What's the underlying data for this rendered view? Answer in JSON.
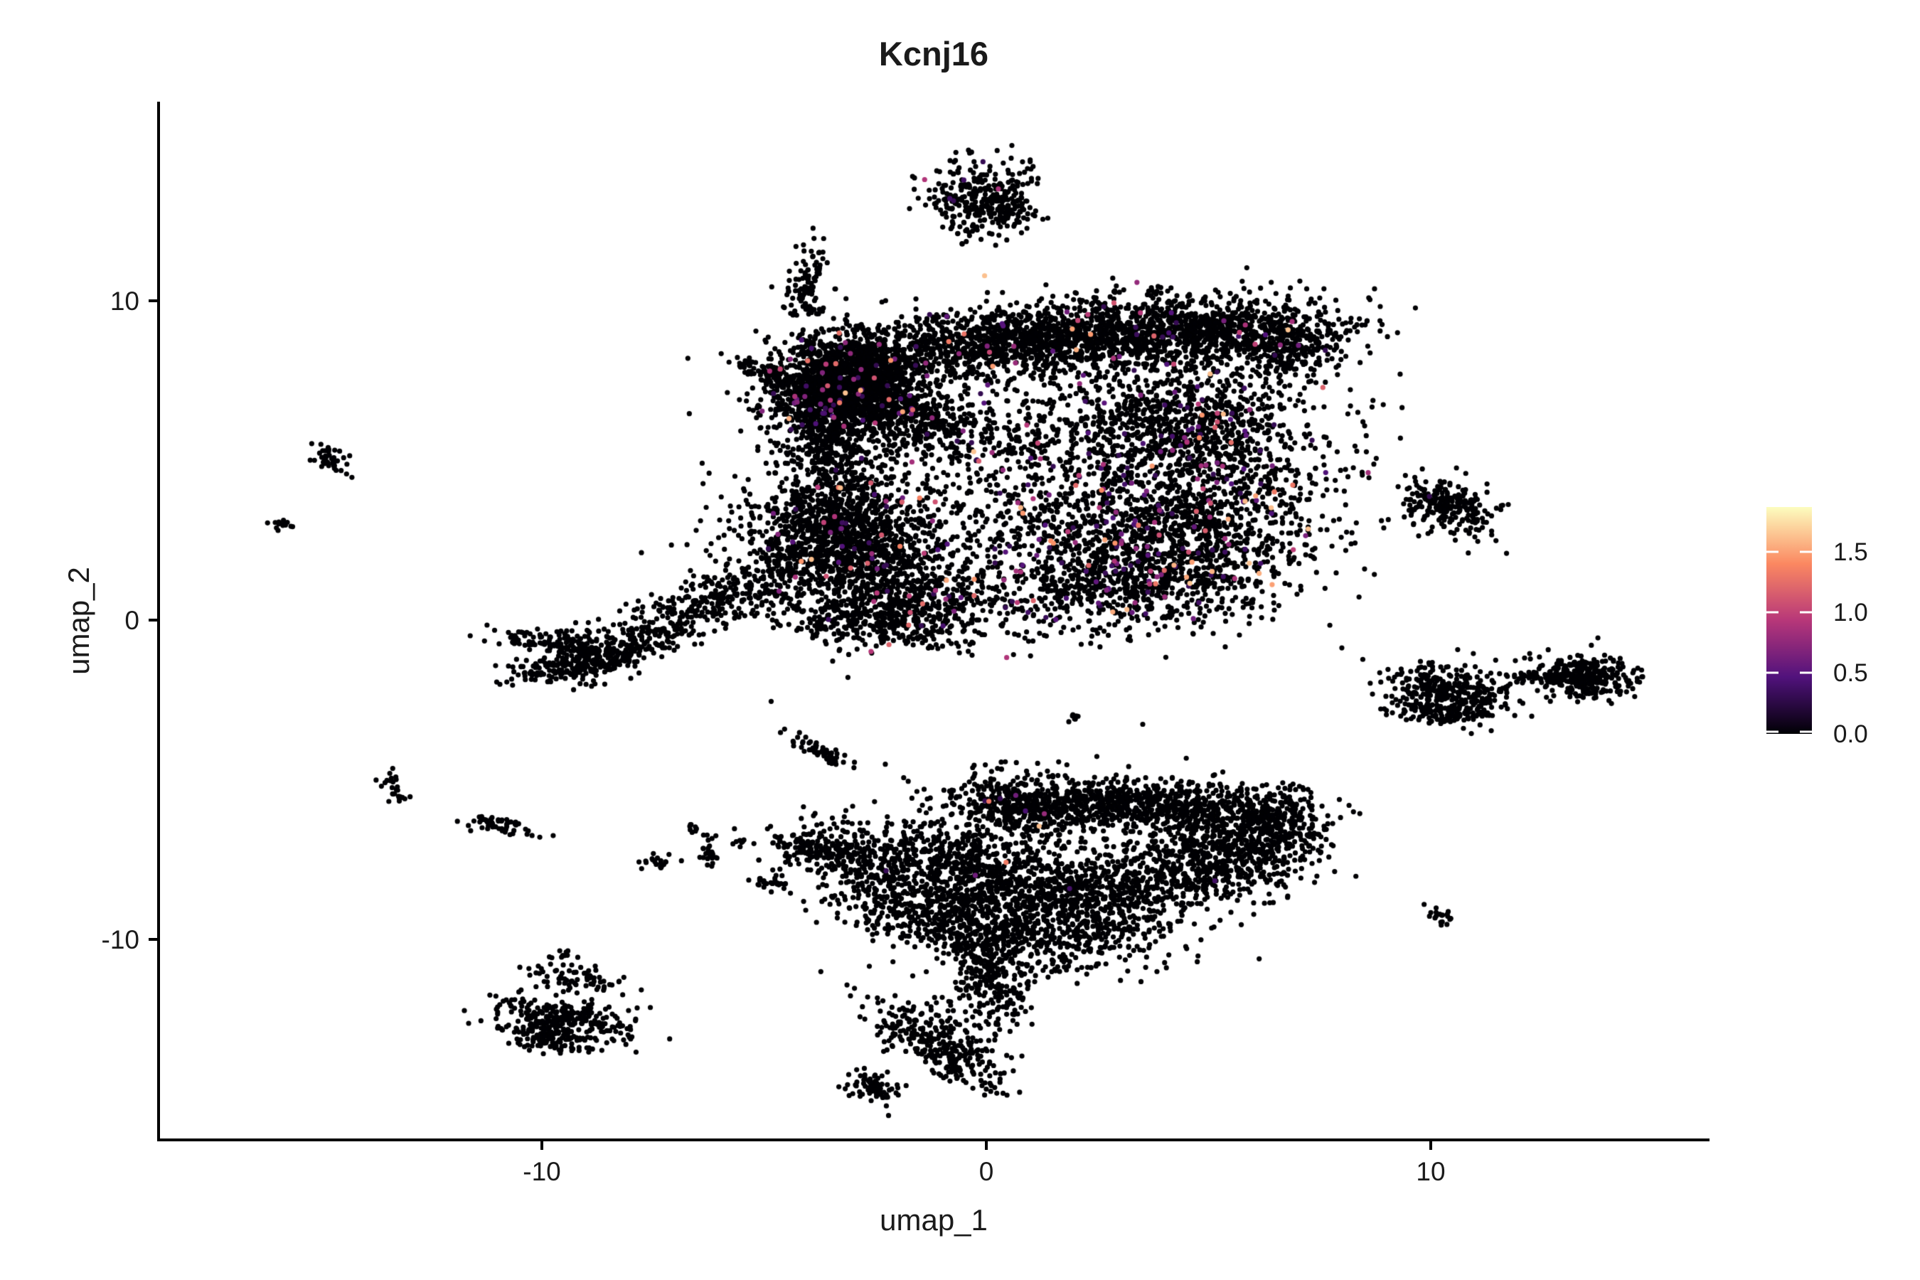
{
  "title": "Kcnj16",
  "axes": {
    "x_label": "umap_1",
    "y_label": "umap_2",
    "x_tick_labels": [
      "-10",
      "0",
      "10"
    ],
    "x_tick_values": [
      -10,
      0,
      10
    ],
    "y_tick_labels": [
      "10",
      "0",
      "-10"
    ],
    "y_tick_values": [
      10,
      0,
      -10
    ]
  },
  "legend": {
    "tick_labels": [
      "1.5",
      "1.0",
      "0.5",
      "0.0"
    ],
    "tick_values": [
      1.5,
      1.0,
      0.5,
      0.0
    ],
    "vmin": 0.0,
    "vmax": 1.87,
    "colormap": "magma",
    "colormap_stops": [
      "#000004",
      "#51127c",
      "#b73779",
      "#fb8861",
      "#fcfdbf"
    ]
  },
  "chart_data": {
    "type": "scatter",
    "title": "Kcnj16",
    "xlabel": "umap_1",
    "ylabel": "umap_2",
    "xlim": [
      -18.625,
      16.275
    ],
    "ylim": [
      -16.28,
      16.24
    ],
    "grid": false,
    "legend_position": "right",
    "point_radius_px": 3.6,
    "base_color": "#000004",
    "expr_value_range": [
      0.3,
      1.65
    ],
    "seed": 7,
    "clusters_fields": [
      "cx",
      "cy",
      "sx",
      "sy",
      "rot_deg",
      "n",
      "expr_frac"
    ],
    "clusters": [
      [
        -3.2,
        7.3,
        0.75,
        0.8,
        -15,
        1500,
        0.03
      ],
      [
        -3.0,
        6.9,
        1.2,
        1.2,
        0,
        500,
        0.03
      ],
      [
        -1.0,
        8.45,
        1.3,
        0.5,
        8,
        600,
        0.025
      ],
      [
        1.8,
        8.9,
        1.5,
        0.55,
        5,
        800,
        0.025
      ],
      [
        4.8,
        9.0,
        1.6,
        0.55,
        3,
        1000,
        0.02
      ],
      [
        6.8,
        8.6,
        0.5,
        0.55,
        0,
        220,
        0.02
      ],
      [
        -1.4,
        6.3,
        1.0,
        0.5,
        -28,
        320,
        0.04
      ],
      [
        4.3,
        6.3,
        1.5,
        1.0,
        0,
        700,
        0.06
      ],
      [
        5.3,
        3.8,
        1.2,
        1.5,
        0,
        650,
        0.07
      ],
      [
        3.4,
        2.2,
        1.5,
        1.1,
        0,
        800,
        0.08
      ],
      [
        3.3,
        4.6,
        2.3,
        2.1,
        0,
        700,
        0.06
      ],
      [
        0.6,
        4.6,
        1.2,
        1.6,
        0,
        280,
        0.05
      ],
      [
        2.7,
        0.9,
        1.7,
        0.6,
        5,
        420,
        0.05
      ],
      [
        -3.4,
        2.7,
        0.95,
        0.85,
        0,
        900,
        0.03
      ],
      [
        -3.1,
        2.3,
        1.5,
        1.4,
        0,
        450,
        0.03
      ],
      [
        -1.9,
        0.9,
        1.0,
        0.8,
        0,
        500,
        0.04
      ],
      [
        -2.6,
        -0.1,
        1.2,
        0.4,
        -10,
        260,
        0.02
      ],
      [
        -3.5,
        5.0,
        0.5,
        1.0,
        10,
        260,
        0.03
      ],
      [
        -6.0,
        0.7,
        1.3,
        0.4,
        25,
        300,
        0
      ],
      [
        -7.7,
        -0.7,
        0.8,
        0.3,
        25,
        150,
        0
      ],
      [
        -9.0,
        -1.2,
        0.4,
        0.45,
        0,
        160,
        0
      ],
      [
        -9.9,
        -0.65,
        0.55,
        0.17,
        -10,
        80,
        0
      ],
      [
        -9.85,
        -1.55,
        0.55,
        0.2,
        10,
        90,
        0
      ],
      [
        -0.15,
        13.2,
        0.6,
        0.6,
        0,
        300,
        0.025
      ],
      [
        0.55,
        12.9,
        0.25,
        0.3,
        0,
        50,
        0
      ],
      [
        -4.05,
        10.65,
        0.18,
        0.6,
        -12,
        90,
        0
      ],
      [
        -3.87,
        9.7,
        0.1,
        0.12,
        0,
        14,
        0
      ],
      [
        -5.05,
        7.85,
        0.4,
        0.13,
        -28,
        50,
        0
      ],
      [
        -4.45,
        7.45,
        0.25,
        0.1,
        -20,
        16,
        0
      ],
      [
        -14.7,
        5.1,
        0.2,
        0.32,
        25,
        40,
        0
      ],
      [
        -15.85,
        3.0,
        0.15,
        0.12,
        0,
        14,
        0
      ],
      [
        10.5,
        3.5,
        0.6,
        0.38,
        -28,
        230,
        0
      ],
      [
        9.75,
        3.95,
        0.07,
        0.07,
        0,
        5,
        0
      ],
      [
        10.3,
        -2.25,
        0.7,
        0.45,
        -12,
        330,
        0
      ],
      [
        10.3,
        -2.9,
        0.5,
        0.2,
        0,
        80,
        0
      ],
      [
        13.5,
        -1.85,
        0.55,
        0.33,
        -5,
        300,
        0
      ],
      [
        12.55,
        -1.75,
        0.4,
        0.1,
        -5,
        60,
        0
      ],
      [
        10.25,
        -9.3,
        0.2,
        0.12,
        -30,
        20,
        0
      ],
      [
        2.0,
        -3.05,
        0.08,
        0.08,
        0,
        7,
        0
      ],
      [
        -3.85,
        -4.05,
        0.4,
        0.12,
        -38,
        55,
        0
      ],
      [
        -13.35,
        -5.3,
        0.18,
        0.28,
        20,
        28,
        0
      ],
      [
        -10.9,
        -6.45,
        0.4,
        0.13,
        -18,
        50,
        0
      ],
      [
        -7.35,
        -7.6,
        0.16,
        0.13,
        0,
        20,
        0
      ],
      [
        -6.2,
        -7.25,
        0.13,
        0.3,
        0,
        26,
        0
      ],
      [
        -5.55,
        -7.0,
        0.1,
        0.08,
        0,
        7,
        0
      ],
      [
        -4.8,
        -8.25,
        0.22,
        0.12,
        -20,
        26,
        0
      ],
      [
        -6.7,
        -6.55,
        0.12,
        0.1,
        0,
        8,
        0
      ],
      [
        3.2,
        -5.75,
        1.8,
        0.45,
        -4,
        900,
        0.006
      ],
      [
        0.8,
        -5.9,
        0.8,
        0.5,
        -10,
        280,
        0.006
      ],
      [
        6.5,
        -6.3,
        0.55,
        0.6,
        0,
        300,
        0
      ],
      [
        5.2,
        -7.3,
        0.95,
        0.75,
        0,
        500,
        0.004
      ],
      [
        2.6,
        -8.3,
        1.8,
        0.5,
        8,
        650,
        0.004
      ],
      [
        -0.4,
        -7.9,
        1.3,
        0.95,
        0,
        750,
        0.004
      ],
      [
        -2.7,
        -7.35,
        1.0,
        0.5,
        -10,
        320,
        0
      ],
      [
        -4.0,
        -7.1,
        0.45,
        0.22,
        -10,
        90,
        0
      ],
      [
        -1.4,
        -9.3,
        1.1,
        0.5,
        -18,
        300,
        0
      ],
      [
        1.9,
        -9.7,
        1.5,
        0.7,
        5,
        520,
        0
      ],
      [
        0.1,
        -11.2,
        0.5,
        0.95,
        0,
        320,
        0
      ],
      [
        -1.1,
        -13.3,
        1.0,
        0.4,
        -40,
        300,
        0
      ],
      [
        -2.5,
        -14.6,
        0.3,
        0.22,
        -30,
        70,
        0
      ],
      [
        -9.2,
        -11.2,
        0.55,
        0.2,
        -12,
        70,
        0
      ],
      [
        -9.5,
        -12.5,
        0.8,
        0.35,
        -15,
        280,
        0
      ],
      [
        -9.9,
        -13.1,
        0.5,
        0.2,
        -15,
        90,
        0
      ],
      [
        -9.55,
        -10.5,
        0.15,
        0.1,
        0,
        10,
        0
      ]
    ],
    "chains_fields": [
      "x1",
      "y1",
      "x2",
      "y2",
      "n",
      "jitter"
    ],
    "chains": [
      [
        -8.85,
        -1.6,
        -7.65,
        -0.8,
        40,
        0.09
      ],
      [
        11.05,
        -2.3,
        12.2,
        -1.9,
        14,
        0.05
      ]
    ]
  }
}
